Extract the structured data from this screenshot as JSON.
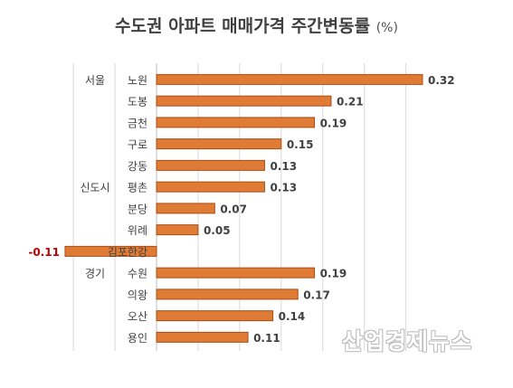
{
  "chart_data": {
    "type": "bar",
    "orientation": "horizontal",
    "title": "수도권 아파트 매매가격 주간변동률",
    "title_unit": "(%)",
    "groups": [
      "서울",
      "신도시",
      "경기"
    ],
    "categories": [
      "노원",
      "도봉",
      "금천",
      "구로",
      "강동",
      "평촌",
      "분당",
      "위례",
      "김포한강",
      "수원",
      "의왕",
      "오산",
      "용인"
    ],
    "category_groups": [
      "서울",
      "서울",
      "서울",
      "서울",
      "서울",
      "신도시",
      "신도시",
      "신도시",
      "신도시",
      "경기",
      "경기",
      "경기",
      "경기"
    ],
    "values": [
      0.32,
      0.21,
      0.19,
      0.15,
      0.13,
      0.13,
      0.07,
      0.05,
      -0.11,
      0.19,
      0.17,
      0.14,
      0.11
    ],
    "value_labels": [
      "0.32",
      "0.21",
      "0.19",
      "0.15",
      "0.13",
      "0.13",
      "0.07",
      "0.05",
      "-0.11",
      "0.19",
      "0.17",
      "0.14",
      "0.11"
    ],
    "xlim": [
      -0.115,
      0.35
    ],
    "grid": "vertical",
    "bar_color": "#e07b35",
    "negative_label_color": "#c00000",
    "label_color": "#404040",
    "grid_color": "#d9d9d9"
  },
  "watermark": "산업경제뉴스"
}
